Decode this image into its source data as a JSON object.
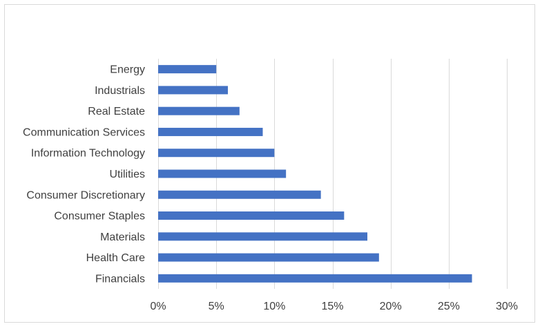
{
  "chart_data": {
    "type": "bar",
    "orientation": "horizontal",
    "title": "",
    "xlabel": "",
    "ylabel": "",
    "categories": [
      "Energy",
      "Industrials",
      "Real Estate",
      "Communication Services",
      "Information Technology",
      "Utilities",
      "Consumer Discretionary",
      "Consumer Staples",
      "Materials",
      "Health Care",
      "Financials"
    ],
    "values": [
      0.05,
      0.06,
      0.07,
      0.09,
      0.1,
      0.11,
      0.14,
      0.16,
      0.18,
      0.19,
      0.27
    ],
    "xlim": [
      0,
      0.3
    ],
    "x_ticks": [
      0,
      0.05,
      0.1,
      0.15,
      0.2,
      0.25,
      0.3
    ],
    "x_tick_labels": [
      "0%",
      "5%",
      "10%",
      "15%",
      "20%",
      "25%",
      "30%"
    ],
    "grid": "vertical",
    "legend": "none",
    "bar_color": "#4472c4"
  }
}
